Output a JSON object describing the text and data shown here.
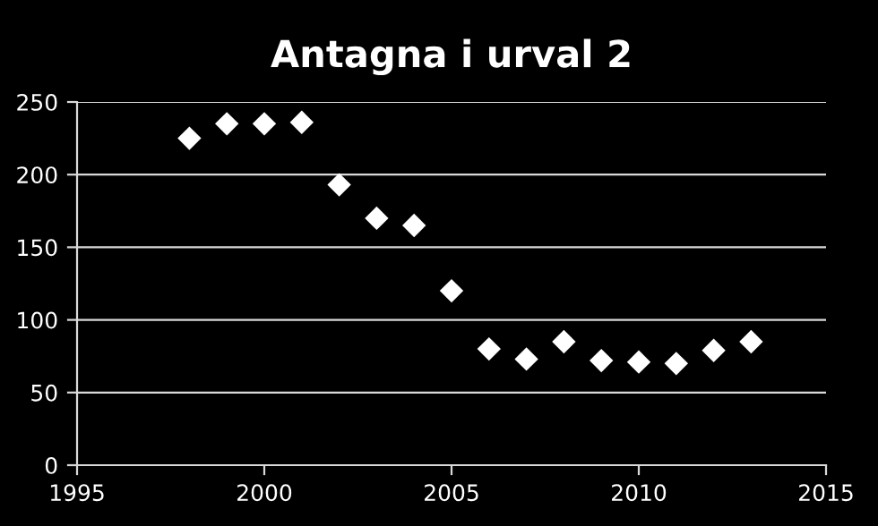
{
  "chart_data": {
    "type": "scatter",
    "title": "Antagna i urval 2",
    "x": [
      1998,
      1999,
      2000,
      2001,
      2002,
      2003,
      2004,
      2005,
      2006,
      2007,
      2008,
      2009,
      2010,
      2011,
      2012,
      2013
    ],
    "values": [
      225,
      235,
      235,
      236,
      193,
      170,
      165,
      120,
      80,
      73,
      85,
      72,
      71,
      70,
      79,
      85
    ],
    "color": "#ffffff",
    "marker": "diamond",
    "xlim": [
      1995,
      2015
    ],
    "xticks": [
      1995,
      2000,
      2005,
      2010,
      2015
    ],
    "ylim": [
      0,
      250
    ],
    "yticks": [
      0,
      50,
      100,
      150,
      200,
      250
    ],
    "grid": "y",
    "legend": false
  }
}
